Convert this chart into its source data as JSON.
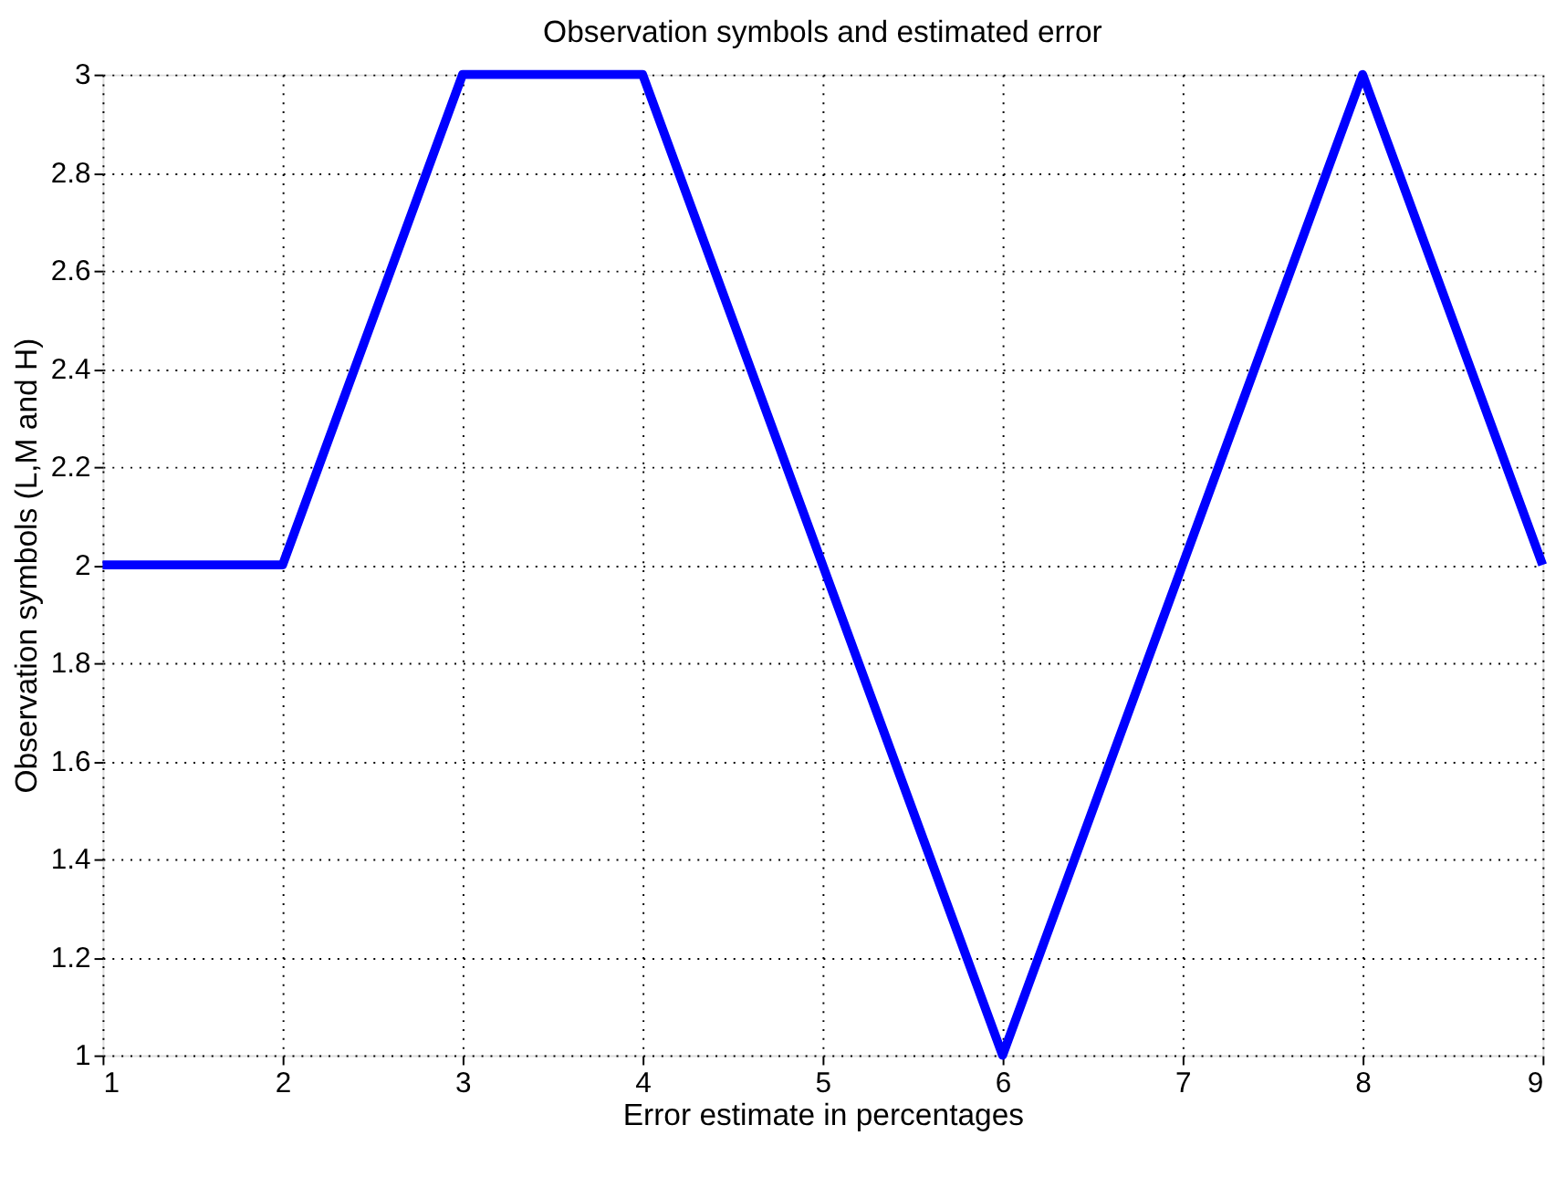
{
  "chart_data": {
    "type": "line",
    "title": "Observation symbols and estimated error",
    "xlabel": "Error estimate in percentages",
    "ylabel": "Observation symbols (L,M and H)",
    "x": [
      1,
      2,
      3,
      4,
      5,
      6,
      7,
      8,
      9
    ],
    "series": [
      {
        "color": "#0000ff",
        "values": [
          2,
          2,
          3,
          3,
          2,
          1,
          2,
          3,
          2
        ]
      }
    ],
    "xlim": [
      1,
      9
    ],
    "xticks": [
      1,
      2,
      3,
      4,
      5,
      6,
      7,
      8,
      9
    ],
    "ylim": [
      1,
      3
    ],
    "yticks": [
      1,
      1.2,
      1.4,
      1.6,
      1.8,
      2,
      2.2,
      2.4,
      2.6,
      2.8,
      3
    ],
    "grid": true,
    "marker": "none",
    "line_style": "solid"
  }
}
